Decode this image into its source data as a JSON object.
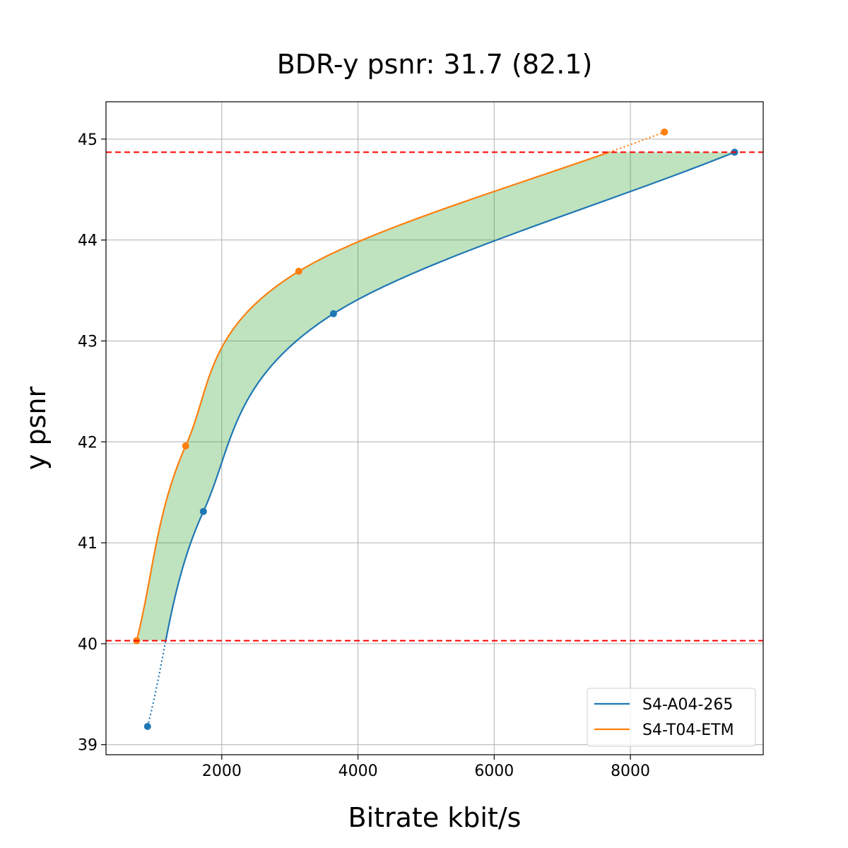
{
  "chart_data": {
    "type": "line",
    "title": "BDR-y psnr: 31.7 (82.1)",
    "xlabel": "Bitrate kbit/s",
    "ylabel": "y psnr",
    "xlim": [
      300,
      9950
    ],
    "ylim": [
      38.9,
      45.37
    ],
    "x_ticks": [
      2000,
      4000,
      6000,
      8000
    ],
    "y_ticks": [
      39,
      40,
      41,
      42,
      43,
      44,
      45
    ],
    "grid": true,
    "legend_position": "lower-right",
    "series": [
      {
        "name": "S4-A04-265",
        "color": "#1f77b4",
        "points": [
          [
            910,
            39.18
          ],
          [
            1730,
            41.31
          ],
          [
            3640,
            43.27
          ],
          [
            9530,
            44.87
          ]
        ]
      },
      {
        "name": "S4-T04-ETM",
        "color": "#ff7f0e",
        "points": [
          [
            750,
            40.03
          ],
          [
            1470,
            41.96
          ],
          [
            3130,
            43.69
          ],
          [
            8500,
            45.07
          ]
        ]
      }
    ],
    "reference_lines": [
      {
        "axis": "y",
        "value": 44.87,
        "color": "#ff0000",
        "style": "dashed"
      },
      {
        "axis": "y",
        "value": 40.03,
        "color": "#ff0000",
        "style": "dashed"
      }
    ],
    "fill_between": {
      "color": "#2ca02c",
      "opacity": 0.3,
      "y_range": [
        40.03,
        44.87
      ]
    }
  }
}
